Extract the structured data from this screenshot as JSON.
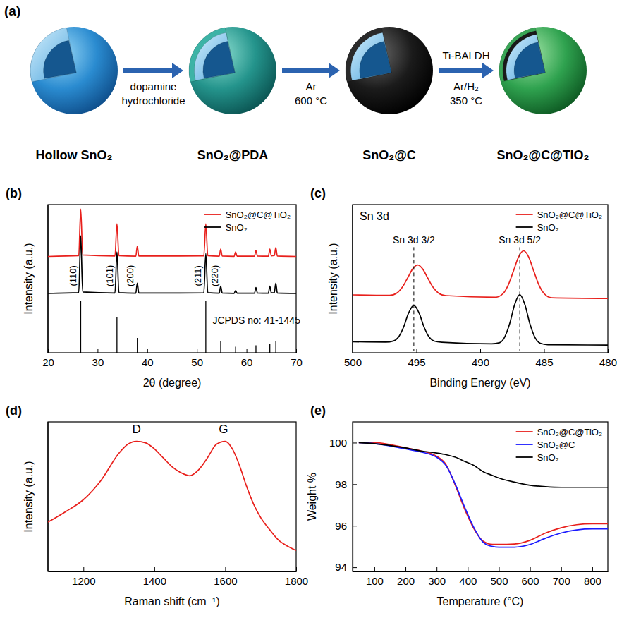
{
  "schematic": {
    "panel": "(a)",
    "stages": [
      "Hollow SnO₂",
      "SnO₂@PDA",
      "SnO₂@C",
      "SnO₂@C@TiO₂"
    ],
    "steps": [
      {
        "below": [
          "dopamine",
          "hydrochloride"
        ]
      },
      {
        "below": [
          "Ar",
          "600 °C"
        ]
      },
      {
        "above": "Ti-BALDH",
        "below": [
          "Ar/H₂",
          "350 °C"
        ]
      }
    ]
  },
  "chart_data": [
    {
      "panel": "(b)",
      "type": "line",
      "x_label": "2θ (degree)",
      "y_label": "Intensity (a.u.)",
      "xlim": [
        20,
        70
      ],
      "xticks": [
        20,
        30,
        40,
        50,
        60,
        70
      ],
      "ylim": [
        0,
        100
      ],
      "tick_labels": "x",
      "legend": "upper right",
      "x": [
        20,
        26.2,
        26.6,
        27.0,
        33.5,
        33.9,
        34.3,
        37.7,
        38.0,
        38.3,
        51.4,
        51.8,
        52.2,
        54.5,
        54.8,
        55.1,
        57.5,
        57.8,
        58.1,
        61.6,
        61.9,
        62.2,
        64.4,
        64.7,
        65.0,
        65.6,
        65.9,
        66.2,
        70
      ],
      "series": [
        {
          "name": "SnO₂@C@TiO₂",
          "color": "#e8201c",
          "values": [
            65,
            65.5,
            97,
            66,
            65.3,
            87,
            65.5,
            65.2,
            72,
            65.3,
            65.4,
            87,
            65.5,
            65.2,
            70,
            65.3,
            65.1,
            68,
            65.2,
            65.2,
            69,
            65.3,
            65.2,
            70,
            65.4,
            65.6,
            71,
            65.3,
            65
          ]
        },
        {
          "name": "SnO₂",
          "color": "#000000",
          "values": [
            40,
            40.5,
            79,
            41,
            40.3,
            68,
            40.5,
            40.2,
            47,
            40.3,
            40.4,
            67,
            40.5,
            40.2,
            45,
            40.3,
            40.1,
            42,
            40.2,
            40.2,
            44,
            40.3,
            40.2,
            45,
            40.4,
            40.6,
            47,
            40.3,
            40
          ]
        }
      ],
      "reference": {
        "x": [
          26.6,
          33.9,
          38.0,
          51.8,
          54.8,
          57.8,
          61.9,
          64.7,
          65.9
        ],
        "values": [
          35,
          24,
          10,
          35,
          8,
          4,
          5,
          6,
          8
        ]
      },
      "peak_labels": [
        {
          "text": "(110)",
          "x": 25.0,
          "y": 52
        },
        {
          "text": "(101)",
          "x": 32.4,
          "y": 52
        },
        {
          "text": "(200)",
          "x": 36.6,
          "y": 52
        },
        {
          "text": "(211)",
          "x": 50.2,
          "y": 52
        },
        {
          "text": "(220)",
          "x": 53.6,
          "y": 52
        }
      ],
      "annotations": [
        {
          "text": "JCPDS no: 41-1445",
          "x": 62.0,
          "y": 22
        }
      ]
    },
    {
      "panel": "(c)",
      "type": "line",
      "title": "Sn 3d",
      "x_label": "Binding Energy (eV)",
      "y_label": "Intensity (a.u.)",
      "xlim": [
        500,
        480
      ],
      "xticks": [
        500,
        495,
        490,
        485,
        480
      ],
      "ylim": [
        0,
        125
      ],
      "tick_labels": "x",
      "legend": "upper right",
      "series": [
        {
          "name": "SnO₂@C@TiO₂",
          "color": "#e8201c",
          "x": [
            500,
            497.1,
            496.5,
            496.1,
            495.7,
            495.3,
            494.9,
            494.5,
            494.1,
            493.7,
            493.3,
            492.7,
            488.8,
            488.2,
            487.8,
            487.4,
            487.0,
            486.6,
            486.2,
            485.8,
            485.4,
            485.0,
            484.4,
            480
          ],
          "values": [
            48.8,
            48.4,
            50.6,
            55.3,
            62.8,
            70.6,
            74,
            70.6,
            62.8,
            55.3,
            50.6,
            48.2,
            46.8,
            50,
            57.2,
            68.8,
            80.8,
            86,
            80.8,
            68.8,
            57.2,
            50,
            46.4,
            45.8
          ]
        },
        {
          "name": "SnO₂",
          "color": "#000000",
          "x": [
            500,
            497.4,
            496.8,
            496.4,
            496.0,
            495.6,
            495.2,
            494.8,
            494.4,
            494.0,
            493.6,
            493.0,
            489.1,
            488.5,
            488.1,
            487.7,
            487.3,
            486.9,
            486.5,
            486.1,
            485.7,
            485.3,
            484.7,
            480
          ],
          "values": [
            9.3,
            9.0,
            9.9,
            13.2,
            21.7,
            33.8,
            40,
            33.8,
            21.7,
            13.2,
            9.8,
            8.8,
            7.5,
            8.4,
            12.9,
            24.2,
            40.6,
            49,
            40.6,
            24.2,
            12.7,
            8.0,
            6.8,
            6.5
          ]
        }
      ],
      "annotations": [
        {
          "text": "Sn 3d 3/2",
          "x": 495.2,
          "y": 95,
          "line_style": "dashed"
        },
        {
          "text": "Sn 3d 5/2",
          "x": 486.9,
          "y": 95,
          "line_style": "dashed"
        }
      ]
    },
    {
      "panel": "(d)",
      "type": "line",
      "x_label": "Raman shift (cm⁻¹)",
      "y_label": "Intensity (a.u.)",
      "xlim": [
        1100,
        1800
      ],
      "xticks": [
        1200,
        1400,
        1600,
        1800
      ],
      "ylim": [
        0,
        100
      ],
      "tick_labels": "x",
      "x": [
        1100,
        1150,
        1200,
        1250,
        1300,
        1325,
        1350,
        1375,
        1400,
        1425,
        1450,
        1475,
        1500,
        1525,
        1550,
        1575,
        1600,
        1620,
        1640,
        1660,
        1680,
        1700,
        1725,
        1750,
        1775,
        1800
      ],
      "series": [
        {
          "color": "#e8201c",
          "values": [
            33,
            40,
            48,
            61,
            79,
            85,
            87,
            86,
            82,
            76,
            70,
            66,
            64,
            68,
            76,
            85,
            87,
            82,
            71,
            57,
            45,
            36,
            28,
            21,
            17,
            14
          ]
        }
      ],
      "annotations": [
        {
          "text": "D",
          "x": 1350,
          "y": 95
        },
        {
          "text": "G",
          "x": 1595,
          "y": 95
        }
      ]
    },
    {
      "panel": "(e)",
      "type": "line",
      "x_label": "Temperature (°C)",
      "y_label": "Weight %",
      "xlim": [
        30,
        850
      ],
      "xticks": [
        100,
        200,
        300,
        400,
        500,
        600,
        700,
        800
      ],
      "ylim": [
        93.8,
        101
      ],
      "yticks": [
        94,
        96,
        98,
        100
      ],
      "legend": "upper right",
      "x": [
        50,
        100,
        200,
        250,
        300,
        330,
        360,
        390,
        420,
        450,
        480,
        500,
        550,
        600,
        650,
        700,
        750,
        800,
        850
      ],
      "series": [
        {
          "name": "SnO₂@C@TiO₂",
          "color": "#e8201c",
          "values": [
            100,
            100,
            99.75,
            99.6,
            99.35,
            98.95,
            97.95,
            96.8,
            95.85,
            95.25,
            95.1,
            95.1,
            95.12,
            95.3,
            95.65,
            95.9,
            96.05,
            96.1,
            96.1
          ]
        },
        {
          "name": "SnO₂@C",
          "color": "#1a1aff",
          "values": [
            100,
            99.95,
            99.7,
            99.55,
            99.3,
            98.9,
            98.0,
            96.9,
            95.9,
            95.2,
            95.0,
            94.97,
            94.97,
            95.1,
            95.4,
            95.65,
            95.8,
            95.85,
            95.85
          ]
        },
        {
          "name": "SnO₂",
          "color": "#000000",
          "values": [
            100,
            99.95,
            99.75,
            99.6,
            99.5,
            99.42,
            99.3,
            99.1,
            98.9,
            98.6,
            98.42,
            98.3,
            98.1,
            97.95,
            97.88,
            97.85,
            97.85,
            97.85,
            97.85
          ]
        }
      ]
    }
  ]
}
